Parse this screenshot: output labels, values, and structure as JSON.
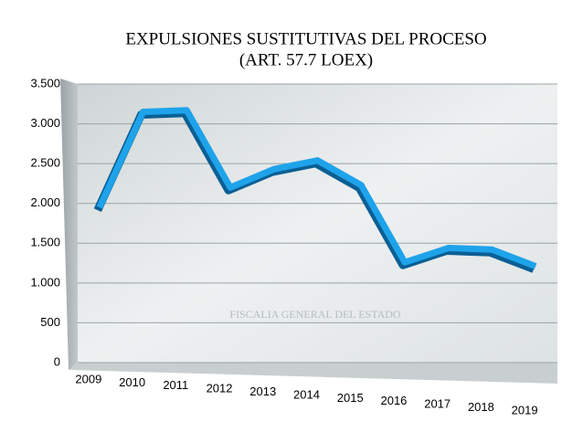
{
  "chart_data": {
    "type": "line",
    "title": "EXPULSIONES SUSTITUTIVAS DEL PROCESO",
    "subtitle": "(ART. 57.7 LOEX)",
    "watermark": "FISCALIA GENERAL DEL ESTADO",
    "categories": [
      "2009",
      "2010",
      "2011",
      "2012",
      "2013",
      "2014",
      "2015",
      "2016",
      "2017",
      "2018",
      "2019"
    ],
    "values": [
      1950,
      3150,
      3170,
      2200,
      2430,
      2540,
      2230,
      1260,
      1440,
      1420,
      1210
    ],
    "color": "#1ea3ea",
    "ylim": [
      0,
      3500
    ],
    "yticks": [
      0,
      500,
      {
        "value": 1000,
        "label": "1.000"
      },
      {
        "value": 1500,
        "label": "1.500"
      },
      {
        "value": 2000,
        "label": "2.000"
      },
      {
        "value": 2500,
        "label": "2.500"
      },
      {
        "value": 3000,
        "label": "3.000"
      },
      {
        "value": 3500,
        "label": "3.500"
      }
    ],
    "grid": true
  }
}
